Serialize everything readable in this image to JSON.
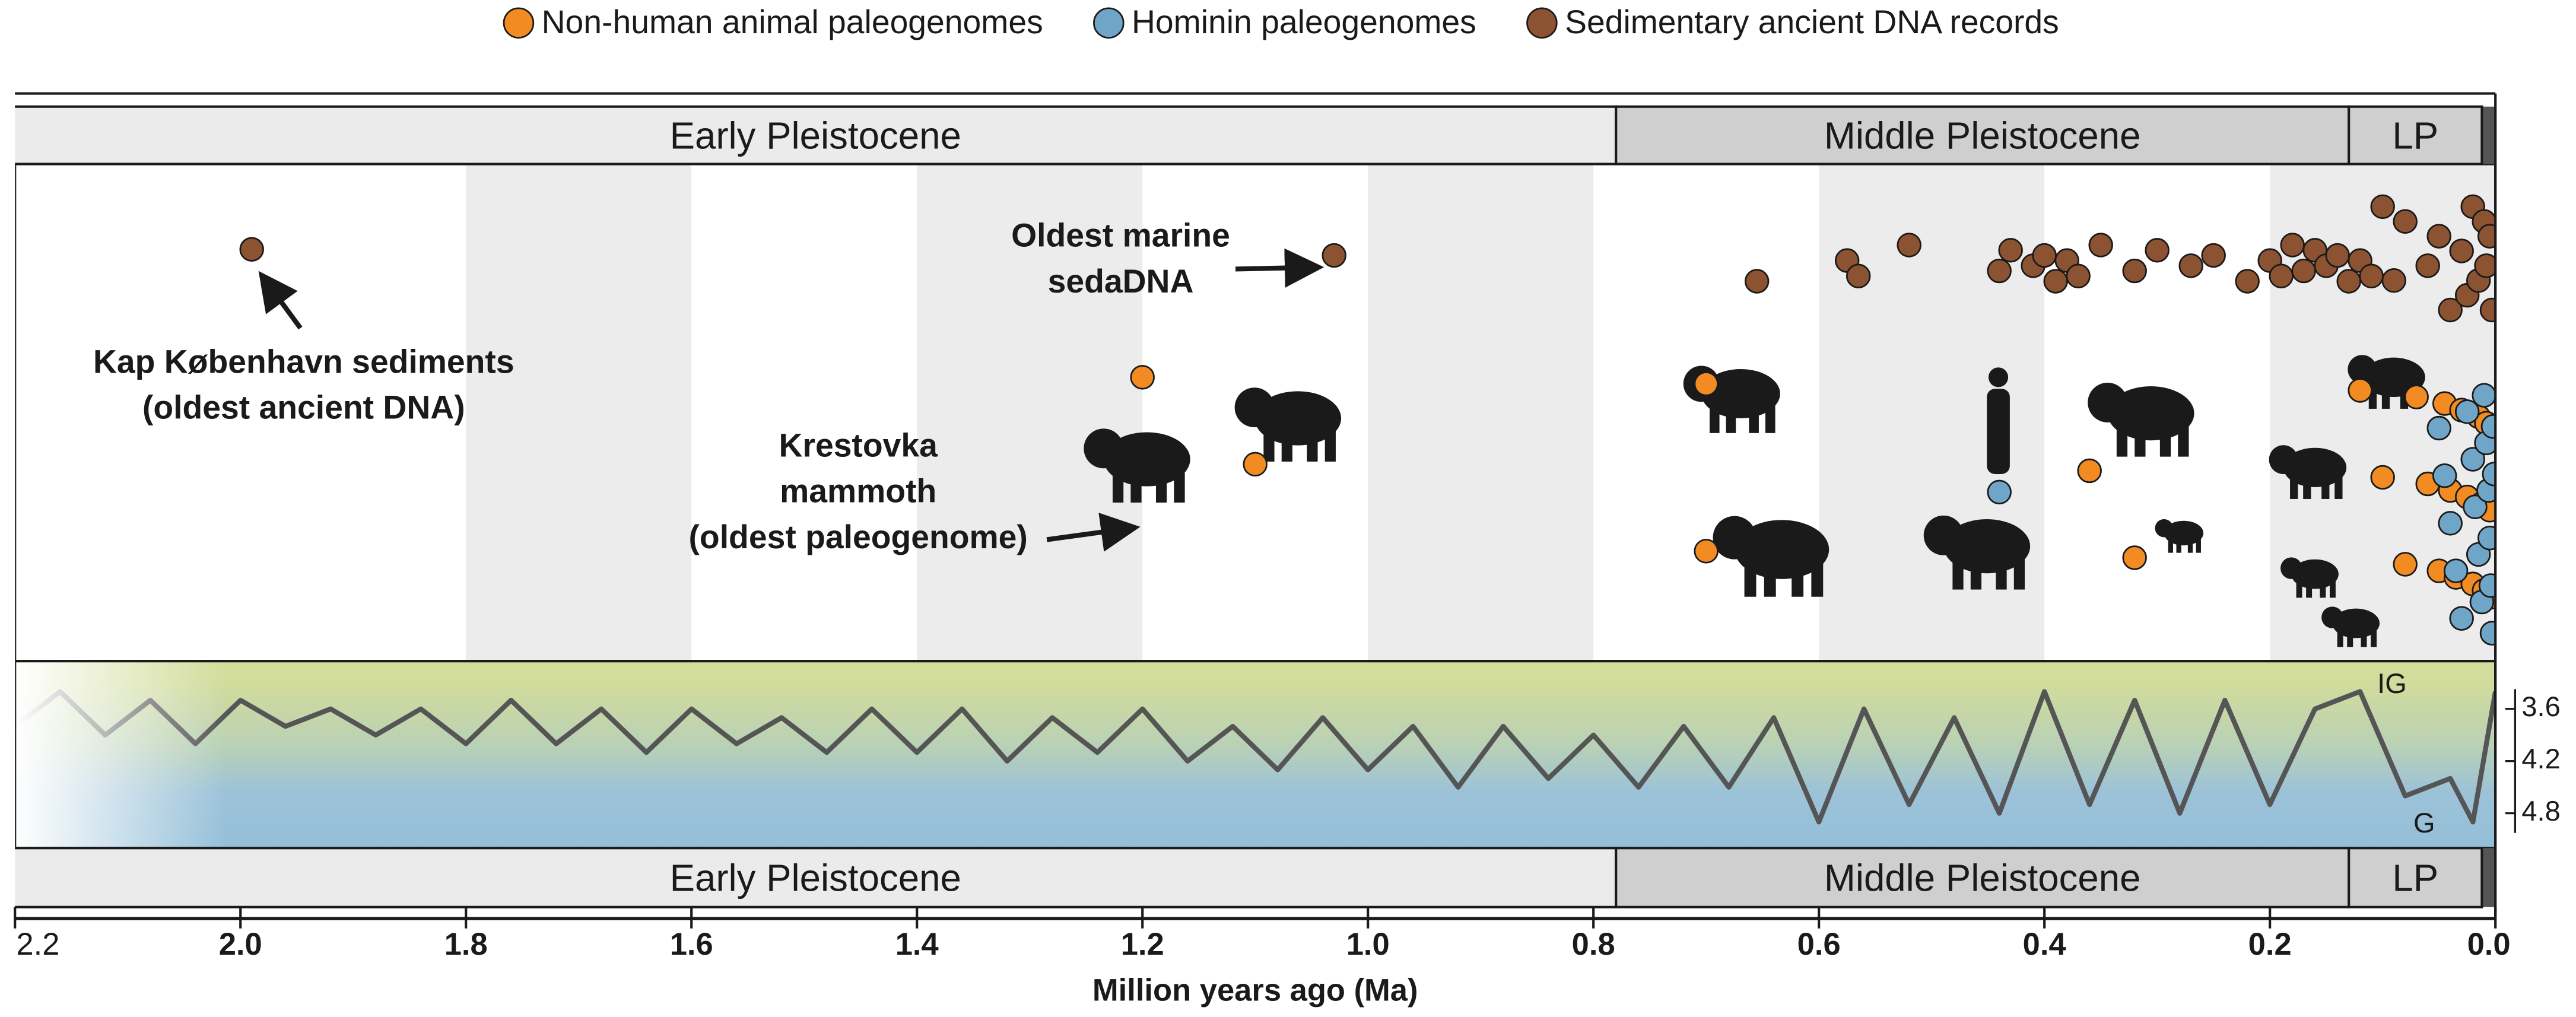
{
  "chart_data": {
    "type": "scatter",
    "xlabel": "Million years ago (Ma)",
    "xlim": [
      2.2,
      0
    ],
    "xticks": [
      2.2,
      {
        "value": 2,
        "label": "2.0"
      },
      1.8,
      1.6,
      1.4,
      1.2,
      {
        "value": 1,
        "label": "1.0"
      },
      0.8,
      0.6,
      0.4,
      0.2,
      {
        "value": 0,
        "label": "0.0"
      }
    ],
    "periods": [
      {
        "name": "Early Pleistocene",
        "start": 2.58,
        "end": 0.78
      },
      {
        "name": "Middle Pleistocene",
        "start": 0.78,
        "end": 0.13
      },
      {
        "name": "LP",
        "start": 0.13,
        "end": 0.012
      }
    ],
    "series": [
      {
        "name": "Non-human animal paleogenomes",
        "color": "#f28b22",
        "x": [
          1.2,
          1.1,
          0.7,
          0.7,
          0.36,
          0.32,
          0.12,
          0.1,
          0.08,
          0.07,
          0.06,
          0.05,
          0.045,
          0.04,
          0.035,
          0.03,
          0.025,
          0.02,
          0.015,
          0.012,
          0.01,
          0.008,
          0.005,
          0.003
        ]
      },
      {
        "name": "Hominin paleogenomes",
        "color": "#6fa6c8",
        "x": [
          0.44,
          0.05,
          0.045,
          0.04,
          0.035,
          0.03,
          0.025,
          0.02,
          0.018,
          0.015,
          0.012,
          0.01,
          0.008,
          0.006,
          0.005,
          0.004,
          0.003,
          0.002,
          0.001
        ]
      },
      {
        "name": "Sedimentary ancient DNA records",
        "color": "#8b5331",
        "x": [
          1.99,
          1.03,
          0.655,
          0.575,
          0.565,
          0.52,
          0.44,
          0.43,
          0.41,
          0.4,
          0.39,
          0.38,
          0.37,
          0.35,
          0.32,
          0.3,
          0.27,
          0.25,
          0.22,
          0.2,
          0.19,
          0.18,
          0.17,
          0.16,
          0.15,
          0.14,
          0.13,
          0.12,
          0.11,
          0.1,
          0.09,
          0.08,
          0.06,
          0.05,
          0.04,
          0.03,
          0.025,
          0.02,
          0.015,
          0.01,
          0.008,
          0.005,
          0.003
        ]
      }
    ],
    "climate": {
      "type": "line",
      "color": "#555555",
      "axis": "y2",
      "x": [
        2.2,
        2.16,
        2.12,
        2.08,
        2.04,
        2.0,
        1.96,
        1.92,
        1.88,
        1.84,
        1.8,
        1.76,
        1.72,
        1.68,
        1.64,
        1.6,
        1.56,
        1.52,
        1.48,
        1.44,
        1.4,
        1.36,
        1.32,
        1.28,
        1.24,
        1.2,
        1.16,
        1.12,
        1.08,
        1.04,
        1.0,
        0.96,
        0.92,
        0.88,
        0.84,
        0.8,
        0.76,
        0.72,
        0.68,
        0.64,
        0.6,
        0.56,
        0.52,
        0.48,
        0.44,
        0.4,
        0.36,
        0.32,
        0.28,
        0.24,
        0.2,
        0.16,
        0.12,
        0.08,
        0.04,
        0.02,
        0.0
      ],
      "values": [
        3.8,
        3.4,
        3.9,
        3.5,
        4.0,
        3.5,
        3.8,
        3.6,
        3.9,
        3.6,
        4.0,
        3.5,
        4.0,
        3.6,
        4.1,
        3.6,
        4.0,
        3.7,
        4.1,
        3.6,
        4.1,
        3.6,
        4.2,
        3.7,
        4.1,
        3.6,
        4.2,
        3.8,
        4.3,
        3.7,
        4.3,
        3.8,
        4.5,
        3.8,
        4.4,
        3.9,
        4.5,
        3.8,
        4.5,
        3.7,
        4.9,
        3.6,
        4.7,
        3.7,
        4.8,
        3.4,
        4.7,
        3.5,
        4.8,
        3.5,
        4.7,
        3.6,
        3.4,
        4.6,
        4.4,
        4.9,
        3.4
      ],
      "y2lim": [
        3.05,
        5.2
      ],
      "y2ticks": [
        3.6,
        4.2,
        4.8
      ],
      "labels": [
        "IG",
        "G"
      ]
    },
    "annotations": [
      {
        "lines": [
          "Kap København sediments",
          "(oldest ancient DNA)"
        ]
      },
      {
        "lines": [
          "Oldest marine",
          "sedaDNA"
        ]
      },
      {
        "lines": [
          "Krestovka",
          "mammoth",
          "(oldest paleogenome)"
        ]
      }
    ]
  }
}
